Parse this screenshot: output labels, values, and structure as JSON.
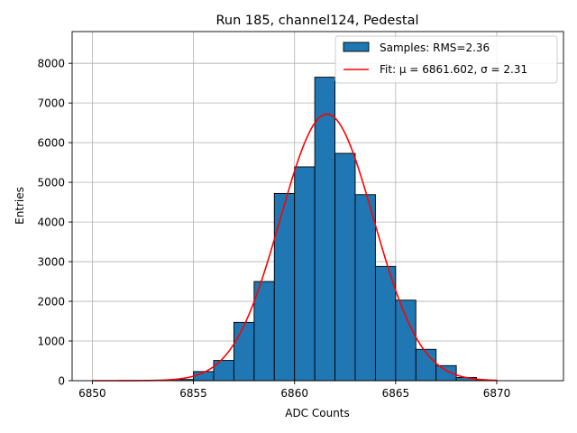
{
  "chart_data": {
    "type": "bar",
    "title": "Run 185, channel124, Pedestal",
    "xlabel": "ADC Counts",
    "ylabel": "Entries",
    "xlim": [
      6849.0,
      6873.3
    ],
    "ylim": [
      0,
      8800
    ],
    "xticks": [
      6850,
      6855,
      6860,
      6865,
      6870
    ],
    "yticks": [
      0,
      1000,
      2000,
      3000,
      4000,
      5000,
      6000,
      7000,
      8000
    ],
    "grid": true,
    "legend_position": "top-right",
    "histogram": {
      "name": "Samples: RMS=2.36",
      "bin_edges": [
        6854,
        6855,
        6856,
        6857,
        6858,
        6859,
        6860,
        6861,
        6862,
        6863,
        6864,
        6865,
        6866,
        6867,
        6868,
        6869,
        6870
      ],
      "values": [
        30,
        230,
        510,
        1470,
        2500,
        4720,
        5390,
        7650,
        5730,
        4690,
        2880,
        2030,
        790,
        380,
        80,
        10
      ],
      "color": "#1f77b4",
      "edgecolor": "#000000"
    },
    "fit": {
      "name": "Fit: μ = 6861.602, σ = 2.31",
      "mu": 6861.602,
      "sigma": 2.31,
      "amplitude": 6720,
      "x_range": [
        6850,
        6870
      ],
      "color": "#ff0000"
    }
  }
}
